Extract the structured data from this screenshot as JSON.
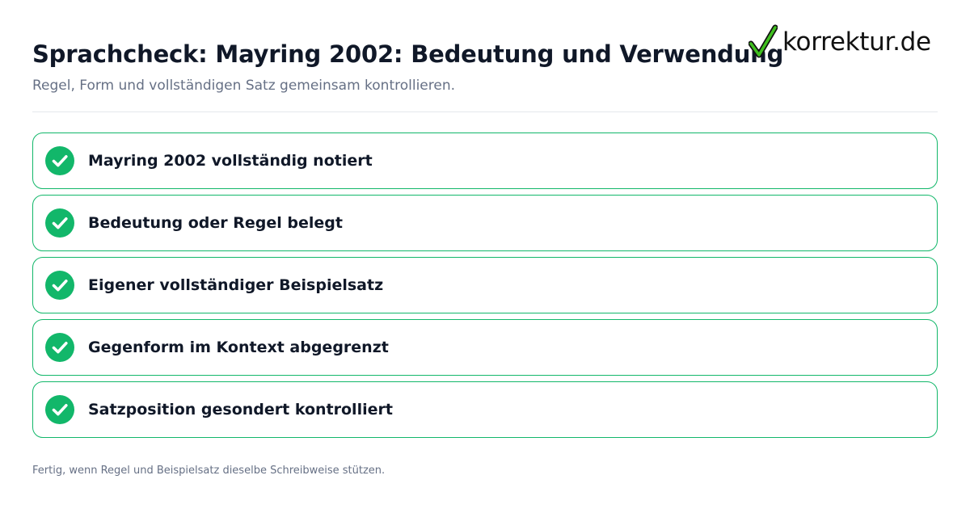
{
  "header": {
    "title": "Sprachcheck: Mayring 2002: Bedeutung und Verwendung",
    "subtitle": "Regel, Form und vollständigen Satz gemeinsam kontrollieren."
  },
  "logo": {
    "text": "korrektur.de",
    "icon": "checkmark-icon",
    "check_color": "#3fbf1f"
  },
  "checklist": {
    "items": [
      {
        "label": "Mayring 2002 vollständig notiert",
        "checked": true,
        "icon": "check-circle-icon"
      },
      {
        "label": "Bedeutung oder Regel belegt",
        "checked": true,
        "icon": "check-circle-icon"
      },
      {
        "label": "Eigener vollständiger Beispielsatz",
        "checked": true,
        "icon": "check-circle-icon"
      },
      {
        "label": "Gegenform im Kontext abgegrenzt",
        "checked": true,
        "icon": "check-circle-icon"
      },
      {
        "label": "Satzposition gesondert kontrolliert",
        "checked": true,
        "icon": "check-circle-icon"
      }
    ]
  },
  "footer": {
    "text": "Fertig, wenn Regel und Beispielsatz dieselbe Schreibweise stützen."
  },
  "colors": {
    "accent_green": "#12b76a",
    "title_text": "#101828",
    "muted_text": "#667085",
    "divider": "#e4e7ec"
  }
}
